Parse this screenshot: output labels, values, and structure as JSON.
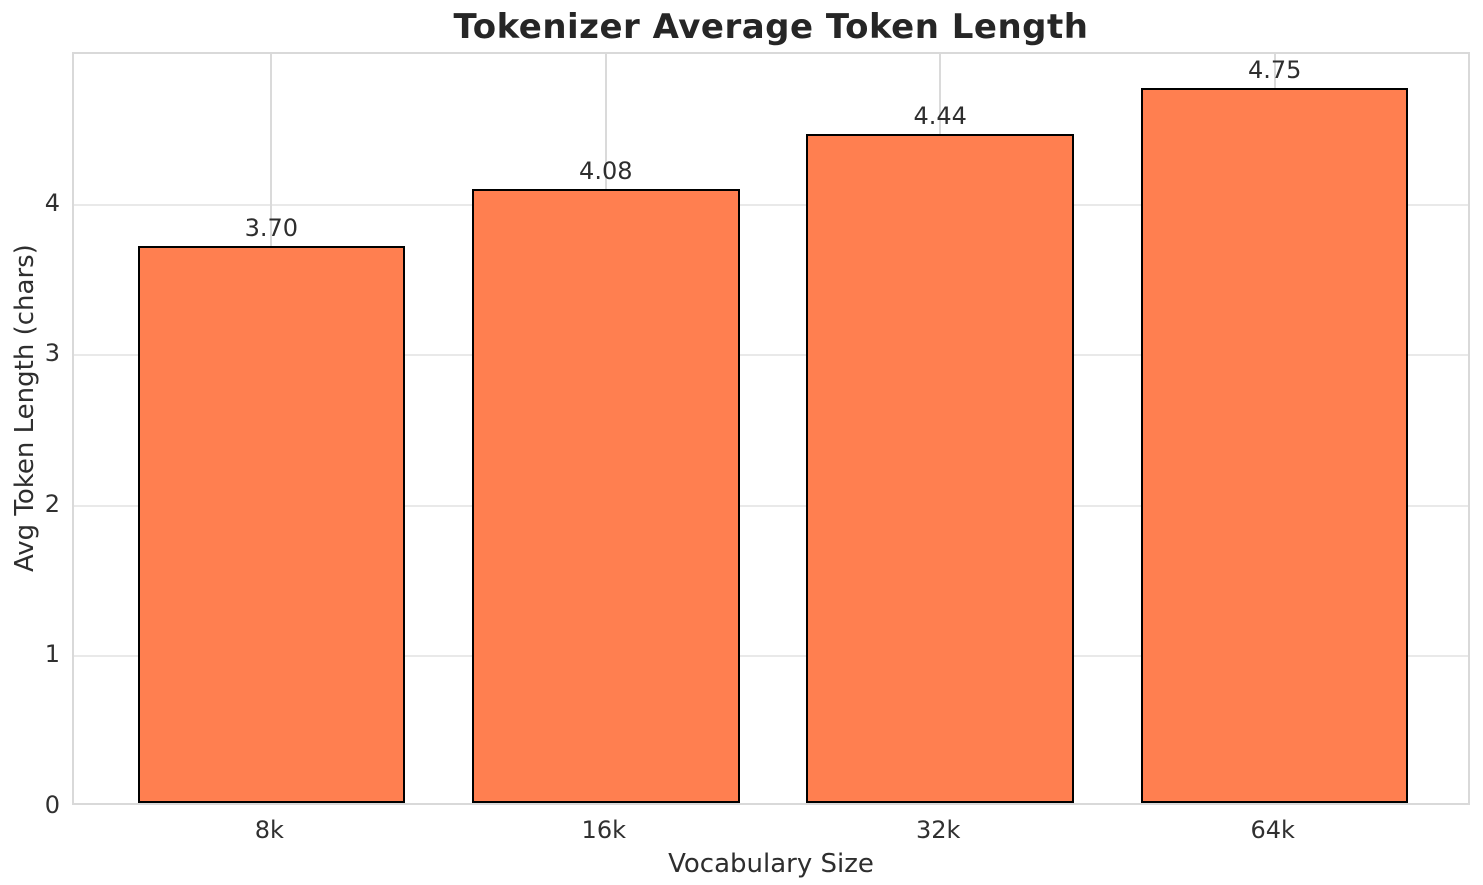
{
  "chart_data": {
    "type": "bar",
    "title": "Tokenizer Average Token Length",
    "xlabel": "Vocabulary Size",
    "ylabel": "Avg Token Length (chars)",
    "categories": [
      "8k",
      "16k",
      "32k",
      "64k"
    ],
    "values": [
      3.7,
      4.08,
      4.44,
      4.75
    ],
    "value_labels": [
      "3.70",
      "4.08",
      "4.44",
      "4.75"
    ],
    "ylim": [
      0,
      5
    ],
    "yticks": [
      0,
      1,
      2,
      3,
      4
    ],
    "ytick_labels": [
      "0",
      "1",
      "2",
      "3",
      "4"
    ],
    "grid": true,
    "legend": false,
    "bar_color": "#FF7F50",
    "bar_edge_color": "#000000"
  },
  "colors": {
    "background": "#ffffff",
    "title_text": "#262626",
    "tick_text": "#303030",
    "spine": "#d9d9d9",
    "grid_horizontal": "#e9e9e9",
    "grid_vertical": "#dadada"
  }
}
